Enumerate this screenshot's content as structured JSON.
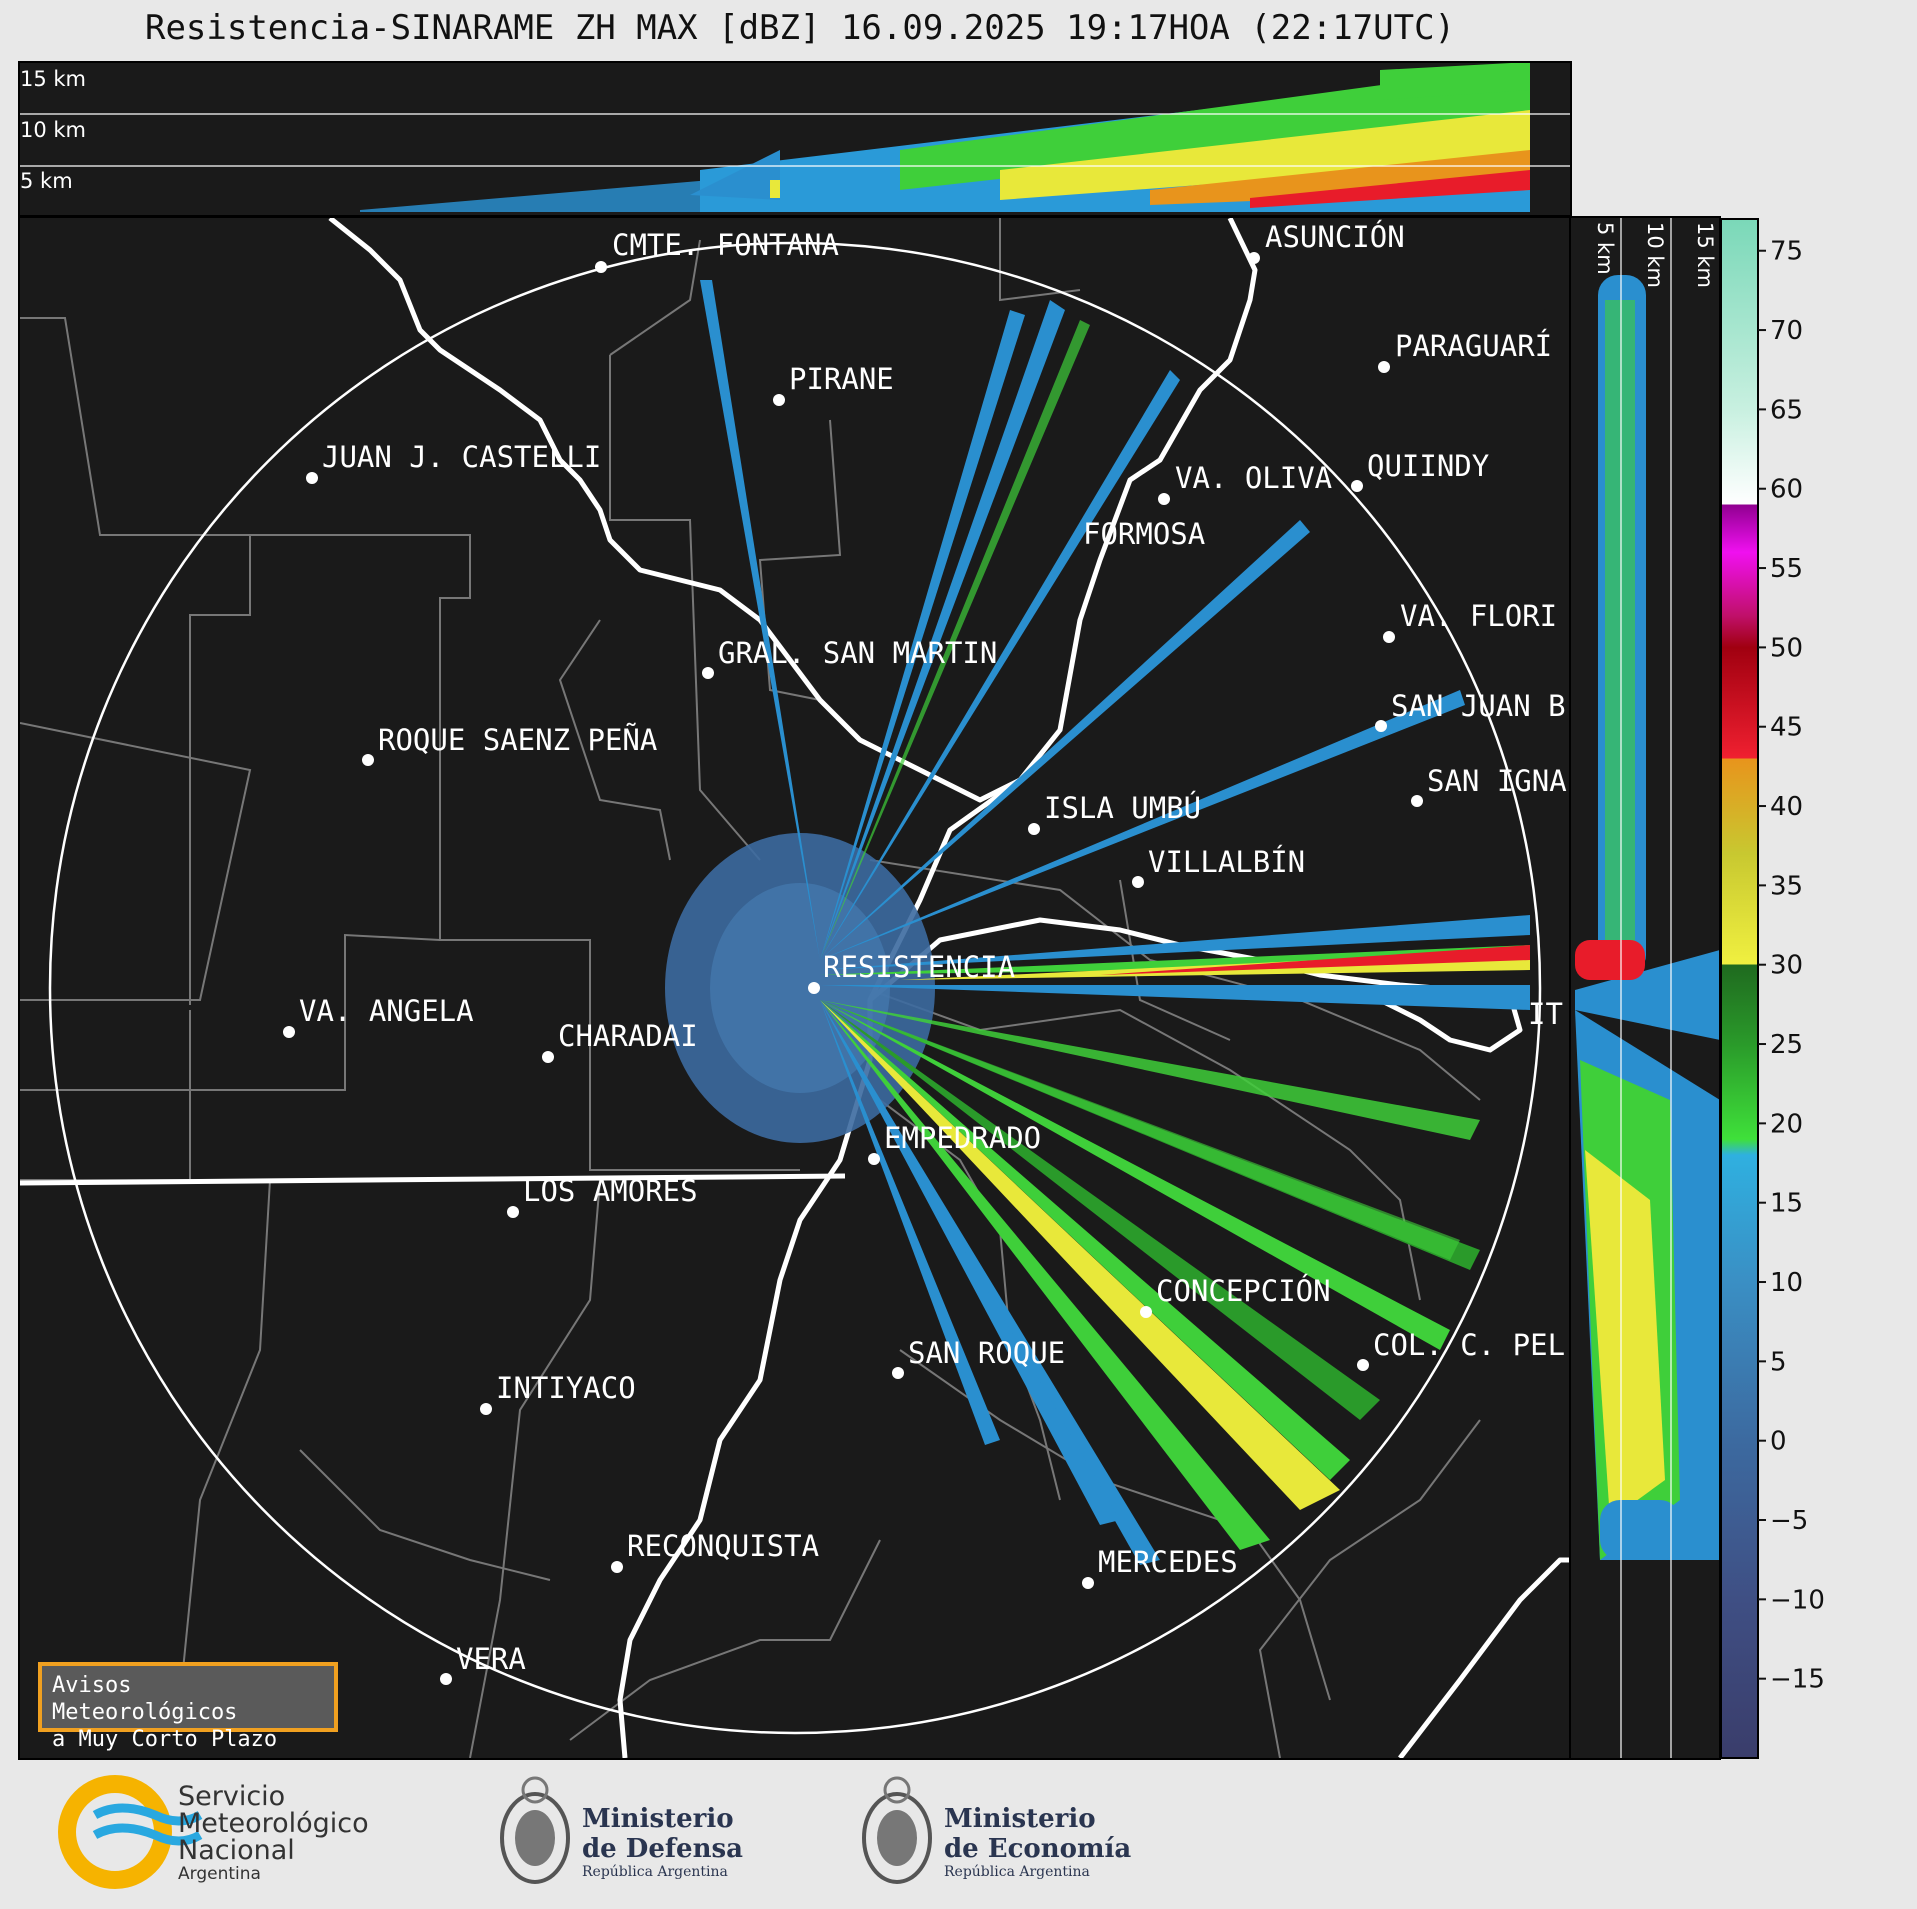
{
  "title": "Resistencia-SINARAME ZH MAX [dBZ] 16.09.2025 19:17HOA (22:17UTC)",
  "height_labels_top": [
    "15 km",
    "10 km",
    "5 km"
  ],
  "height_labels_side": [
    "5 km",
    "10 km",
    "15 km"
  ],
  "cities": [
    {
      "name": "CMTE. FONTANA"
    },
    {
      "name": "ASUNCIÓN"
    },
    {
      "name": "PIRANE"
    },
    {
      "name": "PARAGUARÍ"
    },
    {
      "name": "JUAN J. CASTELLI"
    },
    {
      "name": "VA. OLIVA"
    },
    {
      "name": "QUIINDY"
    },
    {
      "name": "FORMOSA"
    },
    {
      "name": "VA. FLORI"
    },
    {
      "name": "GRAL. SAN MARTIN"
    },
    {
      "name": "SAN JUAN B"
    },
    {
      "name": "ROQUE SAENZ PEÑA"
    },
    {
      "name": "SAN IGNA"
    },
    {
      "name": "ISLA UMBÚ"
    },
    {
      "name": "VILLALBÍN"
    },
    {
      "name": "RESISTENCIA"
    },
    {
      "name": "VA. ANGELA"
    },
    {
      "name": "CHARADAI"
    },
    {
      "name": "IT"
    },
    {
      "name": "EMPEDRADO"
    },
    {
      "name": "LOS AMORES"
    },
    {
      "name": "CONCEPCIÓN"
    },
    {
      "name": "SAN ROQUE"
    },
    {
      "name": "COL. C. PEL"
    },
    {
      "name": "INTIYACO"
    },
    {
      "name": "RECONQUISTA"
    },
    {
      "name": "MERCEDES"
    },
    {
      "name": "VERA"
    }
  ],
  "colorbar": {
    "ticks": [
      "75",
      "70",
      "65",
      "60",
      "55",
      "50",
      "45",
      "40",
      "35",
      "30",
      "25",
      "20",
      "15",
      "10",
      "5",
      "0",
      "−5",
      "−10",
      "−15"
    ],
    "stops": [
      {
        "v": -20,
        "c": "#3a3d6b"
      },
      {
        "v": -10,
        "c": "#3f4f84"
      },
      {
        "v": 0,
        "c": "#3c6aa0"
      },
      {
        "v": 10,
        "c": "#3a8fc4"
      },
      {
        "v": 18,
        "c": "#2fb0e0"
      },
      {
        "v": 19,
        "c": "#3fe03a"
      },
      {
        "v": 25,
        "c": "#2a9a2a"
      },
      {
        "v": 30,
        "c": "#1f6a1f"
      },
      {
        "v": 30.01,
        "c": "#f0f040"
      },
      {
        "v": 37,
        "c": "#c8c830"
      },
      {
        "v": 43,
        "c": "#e8941c"
      },
      {
        "v": 43.01,
        "c": "#f02030"
      },
      {
        "v": 50,
        "c": "#a00010"
      },
      {
        "v": 52,
        "c": "#c0106a"
      },
      {
        "v": 56,
        "c": "#f010f0"
      },
      {
        "v": 59,
        "c": "#900090"
      },
      {
        "v": 59.01,
        "c": "#ffffff"
      },
      {
        "v": 65,
        "c": "#c8f0e0"
      },
      {
        "v": 77,
        "c": "#7ad8b8"
      }
    ]
  },
  "aviso": {
    "line1": "Avisos Meteorológicos",
    "line2": "a Muy Corto Plazo"
  },
  "logos": {
    "smn": {
      "line1": "Servicio",
      "line2": "Meteorológico",
      "line3": "Nacional",
      "line4": "Argentina"
    },
    "defensa": {
      "line1": "Ministerio",
      "line2": "de Defensa",
      "line3": "República Argentina"
    },
    "economia": {
      "line1": "Ministerio",
      "line2": "de Economía",
      "line3": "República Argentina"
    }
  },
  "colors": {
    "map_bg": "#1a1a1a",
    "rain_blue": "#2a8fcf",
    "rain_green": "#3fcf3a",
    "rain_yellow": "#e8e83a",
    "rain_red": "#e81c2a"
  }
}
